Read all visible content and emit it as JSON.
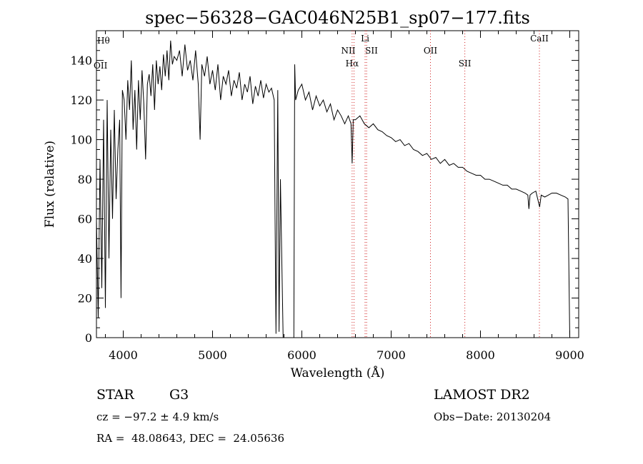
{
  "chart_data": {
    "type": "line",
    "title": "spec−56328−GAC046N25B1_sp07−177.fits",
    "xlabel": "Wavelength (Å)",
    "ylabel": "Flux (relative)",
    "xlim": [
      3700,
      9100
    ],
    "ylim": [
      0,
      155
    ],
    "xticks": [
      4000,
      5000,
      6000,
      7000,
      8000,
      9000
    ],
    "yticks": [
      0,
      20,
      40,
      60,
      80,
      100,
      120,
      140
    ],
    "grid": false,
    "series": [
      {
        "x": [
          3700,
          3720,
          3740,
          3760,
          3780,
          3800,
          3820,
          3840,
          3860,
          3880,
          3900,
          3920,
          3940,
          3960,
          3975,
          3990,
          4010,
          4030,
          4050,
          4070,
          4090,
          4110,
          4130,
          4150,
          4170,
          4190,
          4210,
          4230,
          4250,
          4270,
          4290,
          4310,
          4330,
          4350,
          4370,
          4390,
          4410,
          4430,
          4450,
          4470,
          4490,
          4510,
          4530,
          4550,
          4570,
          4600,
          4630,
          4660,
          4690,
          4720,
          4750,
          4780,
          4810,
          4840,
          4861,
          4880,
          4910,
          4940,
          4970,
          5000,
          5030,
          5060,
          5090,
          5120,
          5150,
          5180,
          5210,
          5240,
          5270,
          5300,
          5330,
          5360,
          5390,
          5420,
          5450,
          5480,
          5510,
          5540,
          5570,
          5600,
          5630,
          5660,
          5690,
          5700,
          5710,
          5730,
          5745,
          5760,
          5790,
          5880,
          5910,
          5920,
          5930,
          5960,
          6000,
          6040,
          6080,
          6120,
          6160,
          6200,
          6240,
          6280,
          6320,
          6360,
          6400,
          6440,
          6480,
          6520,
          6550,
          6563,
          6575,
          6600,
          6650,
          6700,
          6750,
          6800,
          6850,
          6900,
          6950,
          7000,
          7050,
          7100,
          7150,
          7200,
          7250,
          7300,
          7350,
          7400,
          7450,
          7500,
          7550,
          7600,
          7650,
          7700,
          7750,
          7800,
          7850,
          7900,
          7950,
          8000,
          8050,
          8100,
          8150,
          8200,
          8250,
          8300,
          8350,
          8400,
          8450,
          8500,
          8530,
          8542,
          8555,
          8580,
          8620,
          8662,
          8680,
          8720,
          8760,
          8800,
          8850,
          8900,
          8950,
          8980,
          9000
        ],
        "y": [
          60,
          10,
          90,
          25,
          110,
          15,
          120,
          40,
          105,
          60,
          115,
          70,
          95,
          110,
          20,
          125,
          120,
          100,
          130,
          115,
          140,
          105,
          125,
          95,
          130,
          110,
          135,
          118,
          90,
          128,
          133,
          122,
          138,
          115,
          140,
          128,
          137,
          125,
          143,
          132,
          145,
          130,
          150,
          138,
          142,
          140,
          145,
          132,
          148,
          135,
          140,
          130,
          145,
          128,
          100,
          138,
          132,
          142,
          128,
          135,
          125,
          138,
          120,
          132,
          128,
          135,
          122,
          130,
          126,
          134,
          120,
          128,
          124,
          132,
          118,
          127,
          122,
          130,
          121,
          128,
          124,
          126,
          120,
          60,
          2,
          125,
          3,
          80,
          0,
          0,
          0,
          138,
          120,
          125,
          128,
          120,
          124,
          115,
          122,
          117,
          120,
          114,
          118,
          110,
          115,
          112,
          108,
          112,
          108,
          88,
          110,
          110,
          112,
          108,
          106,
          108,
          105,
          104,
          102,
          101,
          99,
          100,
          97,
          98,
          95,
          94,
          92,
          93,
          90,
          91,
          88,
          90,
          87,
          88,
          86,
          86,
          84,
          83,
          82,
          82,
          80,
          80,
          79,
          78,
          77,
          77,
          75,
          75,
          74,
          73,
          72,
          65,
          72,
          73,
          74,
          66,
          72,
          71,
          72,
          73,
          73,
          72,
          71,
          70,
          0
        ]
      }
    ],
    "lines": [
      {
        "label": "Hα",
        "x": 6563,
        "color": "#d02020"
      },
      {
        "label": "NII",
        "x": 6584,
        "color": "#d02020"
      },
      {
        "label": "Li",
        "x": 6708,
        "color": "#d02020"
      },
      {
        "label": "SII",
        "x": 6725,
        "color": "#d02020"
      },
      {
        "label": "OII",
        "x": 7440,
        "color": "#d02020"
      },
      {
        "label": "SII",
        "x": 7825,
        "color": "#d02020"
      },
      {
        "label": "CaII",
        "x": 8660,
        "color": "#d02020"
      }
    ],
    "edge_labels": [
      "Hθ",
      "OII"
    ]
  },
  "footer": {
    "object_type": "STAR",
    "subclass": "G3",
    "survey": "LAMOST DR2",
    "cz": "cz = −97.2 ± 4.9 km/s",
    "obs_date": "Obs−Date: 20130204",
    "coords": "RA =  48.08643, DEC =  24.05636"
  }
}
